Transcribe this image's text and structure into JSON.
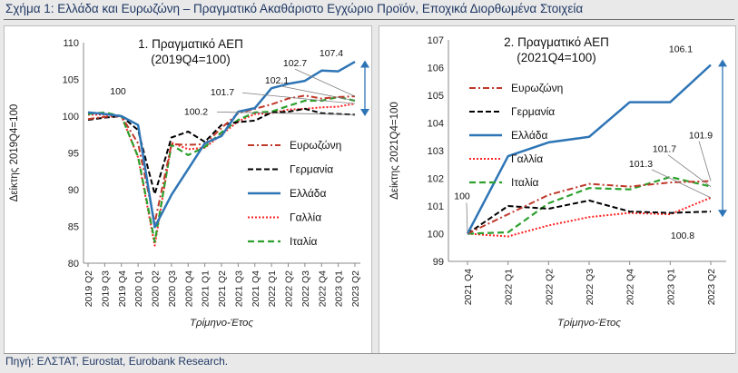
{
  "figure_title": "Σχήμα 1: Ελλάδα και Ευρωζώνη – Πραγματικό Ακαθάριστο Εγχώριο Προϊόν, Εποχικά Διορθωμένα Στοιχεία",
  "source": "Πηγή: ΕΛΣΤΑΤ, Eurostat, Eurobank Research.",
  "colors": {
    "Ευρωζώνη": "#c0392b",
    "Γερμανία": "#000000",
    "Ελλάδα": "#2e75b6",
    "Γαλλία": "#ff2222",
    "Ιταλία": "#2ca02c"
  },
  "chart_data": [
    {
      "type": "line",
      "title": "1. Πραγματικό ΑΕΠ",
      "subtitle": "(2019Q4=100)",
      "xlabel": "Τρίμηνο-Έτος",
      "ylabel": "Δείκτης 2019Q4=100",
      "ylim": [
        80,
        110
      ],
      "yticks": [
        80,
        85,
        90,
        95,
        100,
        105,
        110
      ],
      "grid": false,
      "legend_position": "center-right",
      "categories": [
        "2019 Q2",
        "2019 Q3",
        "2019 Q4",
        "2020 Q1",
        "2020 Q2",
        "2020 Q3",
        "2020 Q4",
        "2021 Q1",
        "2021 Q2",
        "2021 Q3",
        "2021 Q4",
        "2022 Q1",
        "2022 Q2",
        "2022 Q3",
        "2022 Q4",
        "2023 Q1",
        "2023 Q2"
      ],
      "series": [
        {
          "name": "Ευρωζώνη",
          "values": [
            99.6,
            99.9,
            100,
            96.3,
            85.5,
            96.2,
            96.1,
            96.2,
            98.4,
            100.4,
            101.0,
            101.6,
            102.4,
            102.8,
            102.4,
            102.6,
            102.7
          ]
        },
        {
          "name": "Γερμανία",
          "values": [
            99.5,
            99.8,
            100,
            98.1,
            89.4,
            97.1,
            97.9,
            96.5,
            98.8,
            99.2,
            99.4,
            100.5,
            100.6,
            101.0,
            100.4,
            100.3,
            100.2
          ]
        },
        {
          "name": "Ελλάδα",
          "values": [
            100.5,
            100.3,
            100,
            98.8,
            84.9,
            89.3,
            92.8,
            96.3,
            97.3,
            100.6,
            101.1,
            103.8,
            104.4,
            104.8,
            106.2,
            106.1,
            107.4
          ]
        },
        {
          "name": "Γαλλία",
          "values": [
            100.2,
            100.2,
            100,
            94.4,
            82.4,
            96.4,
            95.5,
            95.7,
            97.5,
            99.3,
            100.3,
            100.4,
            100.9,
            101.0,
            101.2,
            101.3,
            101.7
          ]
        },
        {
          "name": "Ιταλία",
          "values": [
            100.3,
            100.5,
            100,
            94.5,
            82.9,
            96.1,
            94.7,
            95.8,
            97.8,
            99.5,
            100.5,
            100.6,
            101.4,
            102.1,
            102.1,
            102.6,
            102.1
          ]
        }
      ],
      "annotations": [
        "107.4",
        "102.7",
        "102.1",
        "101.7",
        "100.2",
        "100"
      ]
    },
    {
      "type": "line",
      "title": "2. Πραγματικό ΑΕΠ",
      "subtitle": "(2021Q4=100)",
      "xlabel": "Τρίμηνο-Έτος",
      "ylabel": "Δείκτης 2021Q4=100",
      "ylim": [
        99,
        107
      ],
      "yticks": [
        99,
        100,
        101,
        102,
        103,
        104,
        105,
        106,
        107
      ],
      "grid": false,
      "legend_position": "top-left",
      "categories": [
        "2021 Q4",
        "2022 Q1",
        "2022 Q2",
        "2022 Q3",
        "2022 Q4",
        "2023 Q1",
        "2023 Q2"
      ],
      "series": [
        {
          "name": "Ευρωζώνη",
          "values": [
            100,
            100.7,
            101.4,
            101.8,
            101.7,
            101.85,
            101.9
          ]
        },
        {
          "name": "Γερμανία",
          "values": [
            100,
            101.0,
            100.9,
            101.2,
            100.8,
            100.75,
            100.8
          ]
        },
        {
          "name": "Ελλάδα",
          "values": [
            100,
            102.8,
            103.3,
            103.5,
            104.75,
            104.75,
            106.1
          ]
        },
        {
          "name": "Γαλλία",
          "values": [
            100,
            99.9,
            100.3,
            100.6,
            100.75,
            100.7,
            101.3
          ]
        },
        {
          "name": "Ιταλία",
          "values": [
            100,
            100.05,
            101.1,
            101.65,
            101.6,
            102.05,
            101.7
          ]
        }
      ],
      "annotations": [
        "106.1",
        "101.9",
        "101.7",
        "101.3",
        "100.8",
        "100"
      ]
    }
  ]
}
